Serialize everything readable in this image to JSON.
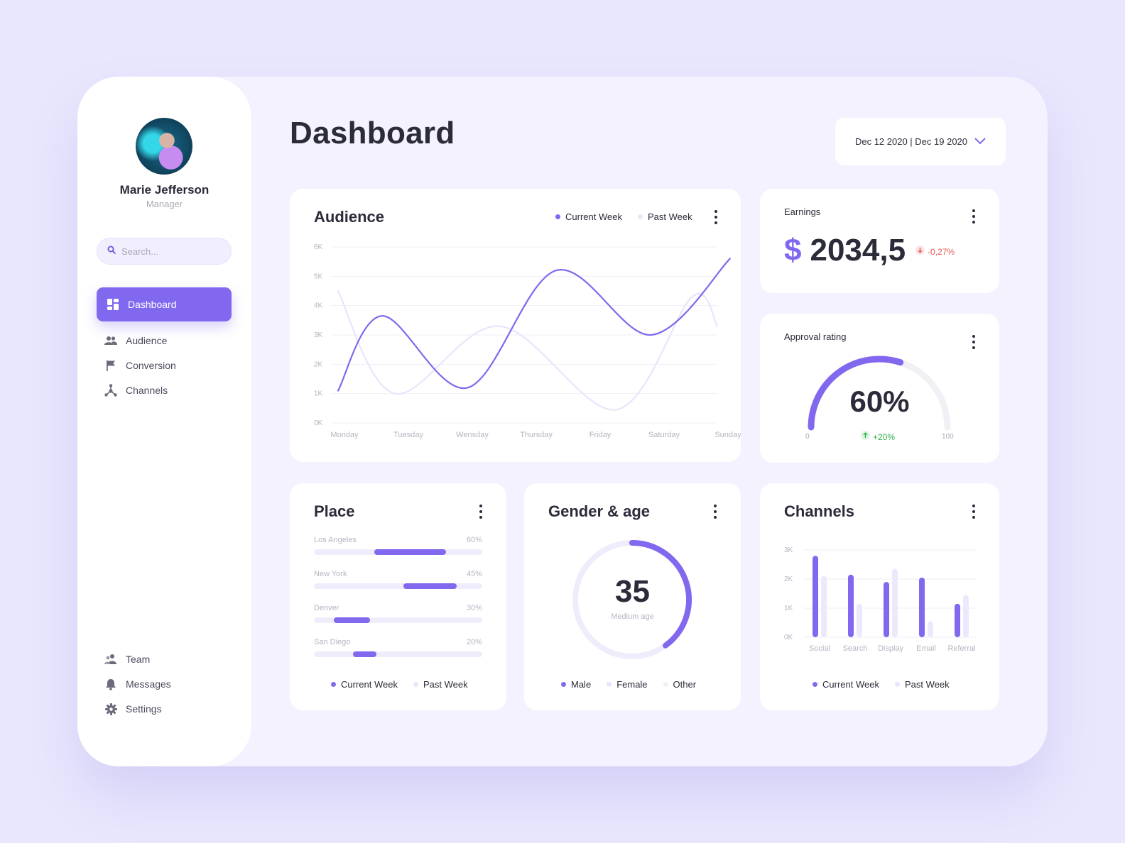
{
  "colors": {
    "accent": "#8268ee",
    "accent_light": "#e8e5fc",
    "negative": "#e35a5a",
    "positive": "#2fb24a",
    "background": "#e9e7fd"
  },
  "user": {
    "name": "Marie Jefferson",
    "role": "Manager"
  },
  "search": {
    "placeholder": "Search..."
  },
  "nav": {
    "primary": [
      {
        "label": "Dashboard",
        "icon": "grid-icon",
        "active": true
      },
      {
        "label": "Audience",
        "icon": "users-icon"
      },
      {
        "label": "Conversion",
        "icon": "flag-icon"
      },
      {
        "label": "Channels",
        "icon": "network-icon"
      }
    ],
    "secondary": [
      {
        "label": "Team",
        "icon": "team-icon"
      },
      {
        "label": "Messages",
        "icon": "bell-icon"
      },
      {
        "label": "Settings",
        "icon": "gear-icon"
      }
    ]
  },
  "header": {
    "title": "Dashboard",
    "date_range": "Dec 12 2020 | Dec 19 2020"
  },
  "audience": {
    "title": "Audience",
    "legend": [
      "Current Week",
      "Past Week"
    ],
    "chart_data": {
      "type": "line",
      "title": "Audience",
      "categories": [
        "Monday",
        "Tuesday",
        "Wensday",
        "Thursday",
        "Friday",
        "Saturday",
        "Sunday"
      ],
      "y_ticks": [
        "0K",
        "1K",
        "2K",
        "3K",
        "4K",
        "5K",
        "6K"
      ],
      "ylim": [
        0,
        6000
      ],
      "grid": true,
      "legend_position": "top-right",
      "series": [
        {
          "name": "Current Week",
          "color": "#8268ee",
          "points": [
            [
              0,
              1100
            ],
            [
              0.7,
              3650
            ],
            [
              2.05,
              1200
            ],
            [
              3.45,
              5200
            ],
            [
              4.95,
              3000
            ],
            [
              6.2,
              5600
            ]
          ]
        },
        {
          "name": "Past Week",
          "color": "#e8e5fc",
          "points": [
            [
              0,
              4500
            ],
            [
              0.9,
              1000
            ],
            [
              2.55,
              3300
            ],
            [
              4.4,
              450
            ],
            [
              5.6,
              4300
            ],
            [
              6.0,
              3300
            ]
          ]
        }
      ]
    }
  },
  "earnings": {
    "title": "Earnings",
    "currency": "$",
    "value": "2034,5",
    "change": "-0,27%"
  },
  "approval": {
    "title": "Approval rating",
    "value": "60%",
    "percent": 60,
    "min": "0",
    "max": "100",
    "change": "+20%"
  },
  "place": {
    "title": "Place",
    "legend": [
      "Current Week",
      "Past Week"
    ],
    "chart_data": {
      "type": "bar",
      "categories": [
        "Los Angeles",
        "New York",
        "Denver",
        "San Diego"
      ],
      "percent_labels": [
        "60%",
        "45%",
        "30%",
        "20%"
      ],
      "series": [
        {
          "name": "Current Week",
          "values": [
            60,
            45,
            30,
            20
          ]
        }
      ]
    }
  },
  "gender_age": {
    "title": "Gender & age",
    "value": "35",
    "caption": "Medium age",
    "legend": [
      "Male",
      "Female",
      "Other"
    ],
    "ring_fraction": 0.4
  },
  "channels": {
    "title": "Channels",
    "legend": [
      "Current Week",
      "Past Week"
    ],
    "chart_data": {
      "type": "bar",
      "categories": [
        "Social",
        "Search",
        "Display",
        "Email",
        "Referral"
      ],
      "y_ticks": [
        "0K",
        "1K",
        "2K",
        "3K"
      ],
      "ylim": [
        0,
        3000
      ],
      "grid": true,
      "series": [
        {
          "name": "Current Week",
          "values": [
            2800,
            2150,
            1900,
            2050,
            1150
          ]
        },
        {
          "name": "Past Week",
          "values": [
            2100,
            1150,
            2350,
            550,
            1450
          ]
        }
      ]
    }
  }
}
